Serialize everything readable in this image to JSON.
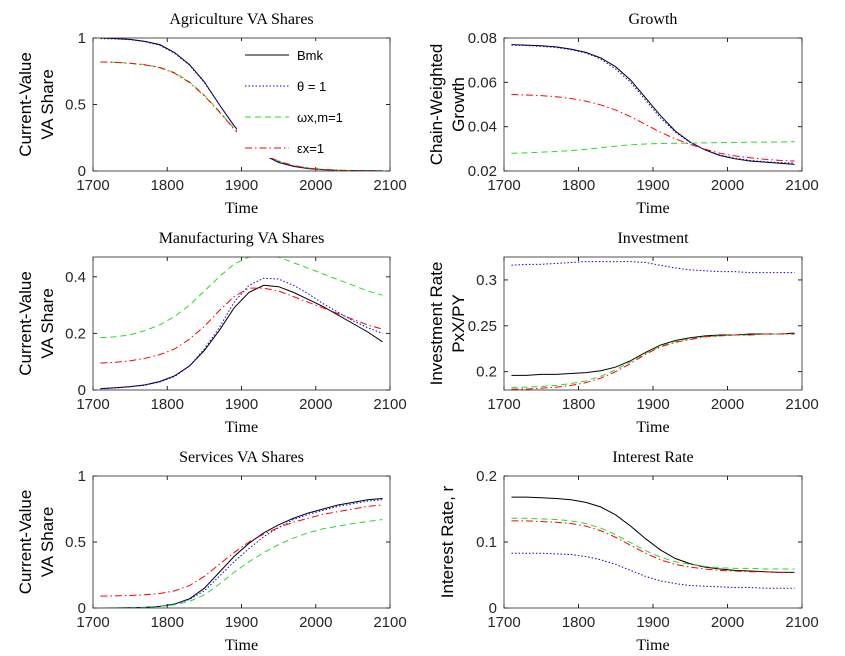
{
  "chart_data": [
    {
      "type": "line",
      "title": "Agriculture VA Shares",
      "xlabel": "Time",
      "ylabel": [
        "Current-Value",
        "VA Share"
      ],
      "x": [
        1710,
        1730,
        1750,
        1770,
        1790,
        1810,
        1830,
        1850,
        1870,
        1890,
        1910,
        1930,
        1950,
        1970,
        1990,
        2010,
        2030,
        2050,
        2070,
        2090
      ],
      "xlim": [
        1700,
        2100
      ],
      "xticks": [
        1700,
        1800,
        1900,
        2000,
        2100
      ],
      "ylim": [
        0,
        1
      ],
      "yticks": [
        0,
        0.5,
        1
      ],
      "legend": "upper right",
      "series": [
        {
          "name": "Bmk",
          "color": "#000000",
          "linestyle": "solid",
          "values": [
            1.0,
            0.995,
            0.99,
            0.975,
            0.95,
            0.89,
            0.8,
            0.67,
            0.5,
            0.34,
            0.21,
            0.12,
            0.065,
            0.035,
            0.018,
            0.01,
            0.005,
            0.003,
            0.002,
            0.001
          ]
        },
        {
          "name": "θ = 1",
          "color": "#0000ff",
          "linestyle": "dotted",
          "values": [
            0.995,
            0.993,
            0.987,
            0.972,
            0.945,
            0.885,
            0.795,
            0.665,
            0.5,
            0.34,
            0.21,
            0.12,
            0.065,
            0.035,
            0.018,
            0.01,
            0.005,
            0.003,
            0.002,
            0.001
          ]
        },
        {
          "name": "ωx,m=1",
          "color": "#22dd22",
          "linestyle": "dashed",
          "values": [
            0.82,
            0.818,
            0.81,
            0.8,
            0.78,
            0.74,
            0.67,
            0.57,
            0.45,
            0.32,
            0.21,
            0.13,
            0.075,
            0.042,
            0.023,
            0.012,
            0.006,
            0.003,
            0.002,
            0.001
          ]
        },
        {
          "name": "εx=1",
          "color": "#ff0000",
          "linestyle": "dashdot",
          "values": [
            0.82,
            0.817,
            0.81,
            0.798,
            0.777,
            0.735,
            0.665,
            0.565,
            0.445,
            0.315,
            0.205,
            0.125,
            0.072,
            0.04,
            0.022,
            0.012,
            0.006,
            0.003,
            0.002,
            0.001
          ]
        }
      ]
    },
    {
      "type": "line",
      "title": "Growth",
      "xlabel": "Time",
      "ylabel": [
        "Chain-Weighted",
        "Growth"
      ],
      "x": [
        1710,
        1730,
        1750,
        1770,
        1790,
        1810,
        1830,
        1850,
        1870,
        1890,
        1910,
        1930,
        1950,
        1970,
        1990,
        2010,
        2030,
        2050,
        2070,
        2090
      ],
      "xlim": [
        1700,
        2100
      ],
      "xticks": [
        1700,
        1800,
        1900,
        2000,
        2100
      ],
      "ylim": [
        0.02,
        0.08
      ],
      "yticks": [
        0.02,
        0.04,
        0.06,
        0.08
      ],
      "series": [
        {
          "color": "#000000",
          "linestyle": "solid",
          "values": [
            0.077,
            0.0768,
            0.0765,
            0.076,
            0.075,
            0.0735,
            0.071,
            0.067,
            0.061,
            0.053,
            0.045,
            0.038,
            0.033,
            0.0295,
            0.027,
            0.0255,
            0.0245,
            0.024,
            0.0235,
            0.023
          ]
        },
        {
          "color": "#0000ff",
          "linestyle": "dotted",
          "values": [
            0.0768,
            0.0766,
            0.0762,
            0.0757,
            0.0747,
            0.0732,
            0.0705,
            0.066,
            0.06,
            0.052,
            0.044,
            0.0375,
            0.0328,
            0.0295,
            0.0272,
            0.0258,
            0.0248,
            0.0242,
            0.0238,
            0.0236
          ]
        },
        {
          "color": "#22dd22",
          "linestyle": "dashed",
          "values": [
            0.028,
            0.0282,
            0.0285,
            0.0288,
            0.0292,
            0.0298,
            0.0305,
            0.0312,
            0.0318,
            0.0322,
            0.0324,
            0.0325,
            0.0326,
            0.0327,
            0.0328,
            0.0329,
            0.033,
            0.033,
            0.0331,
            0.0332
          ]
        },
        {
          "color": "#ff0000",
          "linestyle": "dashdot",
          "values": [
            0.0545,
            0.0543,
            0.054,
            0.0535,
            0.0527,
            0.0515,
            0.0498,
            0.0475,
            0.0445,
            0.041,
            0.0375,
            0.0345,
            0.032,
            0.0298,
            0.028,
            0.0268,
            0.026,
            0.0253,
            0.0248,
            0.0245
          ]
        }
      ]
    },
    {
      "type": "line",
      "title": "Manufacturing VA Shares",
      "xlabel": "Time",
      "ylabel": [
        "Current-Value",
        "VA Share"
      ],
      "x": [
        1710,
        1730,
        1750,
        1770,
        1790,
        1810,
        1830,
        1850,
        1870,
        1890,
        1910,
        1930,
        1950,
        1970,
        1990,
        2010,
        2030,
        2050,
        2070,
        2090
      ],
      "xlim": [
        1700,
        2100
      ],
      "xticks": [
        1700,
        1800,
        1900,
        2000,
        2100
      ],
      "ylim": [
        0,
        0.47
      ],
      "yticks": [
        0,
        0.2,
        0.4
      ],
      "series": [
        {
          "color": "#000000",
          "linestyle": "solid",
          "values": [
            0.005,
            0.008,
            0.012,
            0.018,
            0.03,
            0.05,
            0.085,
            0.14,
            0.21,
            0.29,
            0.345,
            0.37,
            0.365,
            0.345,
            0.32,
            0.295,
            0.265,
            0.235,
            0.205,
            0.17
          ]
        },
        {
          "color": "#0000ff",
          "linestyle": "dotted",
          "values": [
            0.004,
            0.007,
            0.011,
            0.017,
            0.028,
            0.048,
            0.085,
            0.145,
            0.22,
            0.31,
            0.37,
            0.395,
            0.392,
            0.37,
            0.34,
            0.305,
            0.275,
            0.245,
            0.22,
            0.2
          ]
        },
        {
          "color": "#22dd22",
          "linestyle": "dashed",
          "values": [
            0.185,
            0.188,
            0.195,
            0.21,
            0.23,
            0.26,
            0.3,
            0.35,
            0.4,
            0.445,
            0.47,
            0.475,
            0.47,
            0.45,
            0.43,
            0.41,
            0.39,
            0.37,
            0.35,
            0.335
          ]
        },
        {
          "color": "#ff0000",
          "linestyle": "dashdot",
          "values": [
            0.095,
            0.098,
            0.103,
            0.112,
            0.125,
            0.145,
            0.18,
            0.225,
            0.28,
            0.33,
            0.36,
            0.36,
            0.35,
            0.33,
            0.31,
            0.29,
            0.27,
            0.25,
            0.23,
            0.215
          ]
        }
      ]
    },
    {
      "type": "line",
      "title": "Investment",
      "xlabel": "Time",
      "ylabel": [
        "Investment Rate",
        "PxX/PY"
      ],
      "x": [
        1710,
        1730,
        1750,
        1770,
        1790,
        1810,
        1830,
        1850,
        1870,
        1890,
        1910,
        1930,
        1950,
        1970,
        1990,
        2010,
        2030,
        2050,
        2070,
        2090
      ],
      "xlim": [
        1700,
        2100
      ],
      "xticks": [
        1700,
        1800,
        1900,
        2000,
        2100
      ],
      "ylim": [
        0.18,
        0.325
      ],
      "yticks": [
        0.2,
        0.25,
        0.3
      ],
      "series": [
        {
          "color": "#000000",
          "linestyle": "solid",
          "values": [
            0.196,
            0.196,
            0.197,
            0.197,
            0.198,
            0.199,
            0.201,
            0.205,
            0.212,
            0.221,
            0.229,
            0.234,
            0.237,
            0.239,
            0.24,
            0.24,
            0.241,
            0.241,
            0.241,
            0.242
          ]
        },
        {
          "color": "#0000ff",
          "linestyle": "dotted",
          "values": [
            0.316,
            0.317,
            0.317,
            0.318,
            0.319,
            0.32,
            0.32,
            0.32,
            0.32,
            0.319,
            0.316,
            0.313,
            0.311,
            0.31,
            0.309,
            0.309,
            0.308,
            0.308,
            0.308,
            0.308
          ]
        },
        {
          "color": "#22dd22",
          "linestyle": "dashed",
          "values": [
            0.183,
            0.183,
            0.184,
            0.185,
            0.187,
            0.19,
            0.195,
            0.202,
            0.211,
            0.22,
            0.228,
            0.233,
            0.236,
            0.238,
            0.239,
            0.24,
            0.24,
            0.241,
            0.241,
            0.241
          ]
        },
        {
          "color": "#ff0000",
          "linestyle": "dashdot",
          "values": [
            0.181,
            0.181,
            0.182,
            0.183,
            0.185,
            0.188,
            0.193,
            0.2,
            0.209,
            0.219,
            0.227,
            0.232,
            0.235,
            0.238,
            0.239,
            0.24,
            0.24,
            0.241,
            0.241,
            0.241
          ]
        }
      ]
    },
    {
      "type": "line",
      "title": "Services VA Shares",
      "xlabel": "Time",
      "ylabel": [
        "Current-Value",
        "VA Share"
      ],
      "x": [
        1710,
        1730,
        1750,
        1770,
        1790,
        1810,
        1830,
        1850,
        1870,
        1890,
        1910,
        1930,
        1950,
        1970,
        1990,
        2010,
        2030,
        2050,
        2070,
        2090
      ],
      "xlim": [
        1700,
        2100
      ],
      "xticks": [
        1700,
        1800,
        1900,
        2000,
        2100
      ],
      "ylim": [
        0,
        1
      ],
      "yticks": [
        0,
        0.5,
        1
      ],
      "series": [
        {
          "color": "#000000",
          "linestyle": "solid",
          "values": [
            0,
            0,
            0.002,
            0.005,
            0.012,
            0.03,
            0.07,
            0.15,
            0.27,
            0.39,
            0.49,
            0.57,
            0.63,
            0.68,
            0.72,
            0.75,
            0.78,
            0.8,
            0.82,
            0.83
          ]
        },
        {
          "color": "#0000ff",
          "linestyle": "dotted",
          "values": [
            0,
            0,
            0.002,
            0.005,
            0.012,
            0.03,
            0.065,
            0.13,
            0.24,
            0.35,
            0.45,
            0.54,
            0.61,
            0.67,
            0.71,
            0.74,
            0.77,
            0.79,
            0.81,
            0.82
          ]
        },
        {
          "color": "#22dd22",
          "linestyle": "dashed",
          "values": [
            0,
            0.001,
            0.003,
            0.006,
            0.012,
            0.025,
            0.05,
            0.1,
            0.18,
            0.27,
            0.35,
            0.42,
            0.48,
            0.53,
            0.57,
            0.6,
            0.62,
            0.64,
            0.655,
            0.67
          ]
        },
        {
          "color": "#ff0000",
          "linestyle": "dashdot",
          "values": [
            0.09,
            0.092,
            0.095,
            0.1,
            0.11,
            0.13,
            0.17,
            0.24,
            0.33,
            0.42,
            0.5,
            0.56,
            0.61,
            0.65,
            0.68,
            0.71,
            0.73,
            0.75,
            0.77,
            0.78
          ]
        }
      ]
    },
    {
      "type": "line",
      "title": "Interest Rate",
      "xlabel": "Time",
      "ylabel": [
        "Interest Rate, r"
      ],
      "x": [
        1710,
        1730,
        1750,
        1770,
        1790,
        1810,
        1830,
        1850,
        1870,
        1890,
        1910,
        1930,
        1950,
        1970,
        1990,
        2010,
        2030,
        2050,
        2070,
        2090
      ],
      "xlim": [
        1700,
        2100
      ],
      "xticks": [
        1700,
        1800,
        1900,
        2000,
        2100
      ],
      "ylim": [
        0,
        0.2
      ],
      "yticks": [
        0,
        0.1,
        0.2
      ],
      "series": [
        {
          "color": "#000000",
          "linestyle": "solid",
          "values": [
            0.168,
            0.168,
            0.167,
            0.166,
            0.164,
            0.16,
            0.153,
            0.141,
            0.124,
            0.105,
            0.088,
            0.075,
            0.067,
            0.062,
            0.059,
            0.057,
            0.056,
            0.055,
            0.054,
            0.054
          ]
        },
        {
          "color": "#0000ff",
          "linestyle": "dotted",
          "values": [
            0.083,
            0.083,
            0.083,
            0.082,
            0.081,
            0.078,
            0.073,
            0.066,
            0.057,
            0.048,
            0.041,
            0.037,
            0.034,
            0.033,
            0.032,
            0.031,
            0.031,
            0.03,
            0.03,
            0.03
          ]
        },
        {
          "color": "#22dd22",
          "linestyle": "dashed",
          "values": [
            0.136,
            0.136,
            0.135,
            0.134,
            0.132,
            0.128,
            0.121,
            0.111,
            0.099,
            0.087,
            0.077,
            0.07,
            0.066,
            0.063,
            0.061,
            0.06,
            0.06,
            0.059,
            0.059,
            0.059
          ]
        },
        {
          "color": "#ff0000",
          "linestyle": "dashdot",
          "values": [
            0.132,
            0.132,
            0.131,
            0.13,
            0.128,
            0.124,
            0.117,
            0.107,
            0.095,
            0.083,
            0.073,
            0.066,
            0.062,
            0.059,
            0.057,
            0.056,
            0.055,
            0.055,
            0.054,
            0.054
          ]
        }
      ]
    }
  ]
}
